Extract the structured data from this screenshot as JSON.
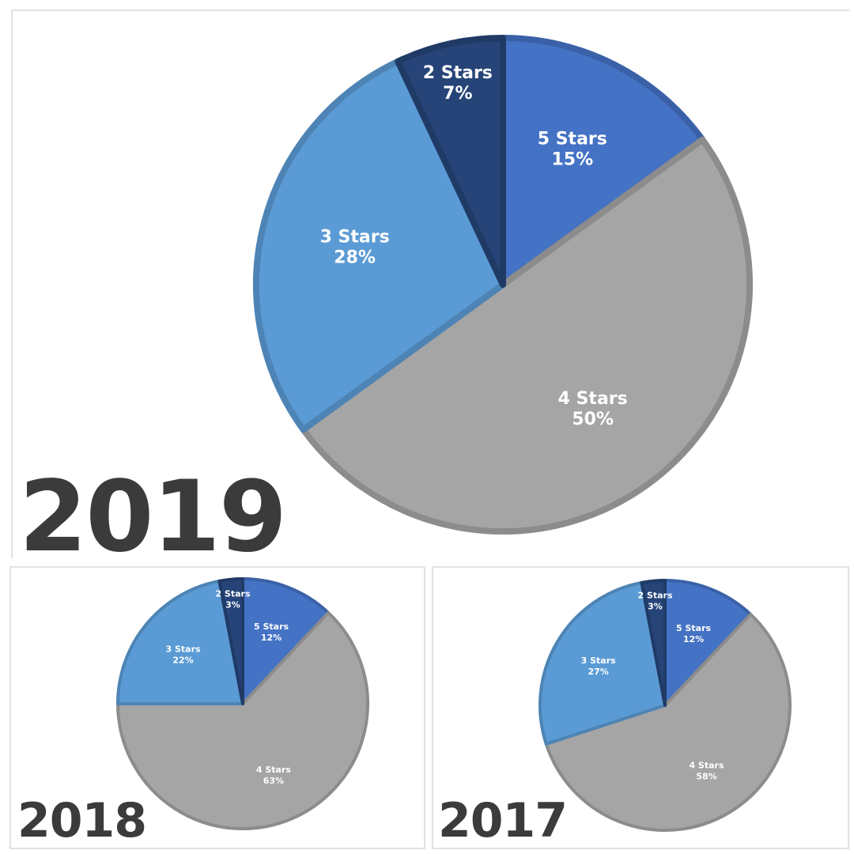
{
  "colors": {
    "5 Stars": "#4472c4",
    "4 Stars": "#a5a5a5",
    "3 Stars": "#5b9bd5",
    "2 Stars": "#264478"
  },
  "chart_data": [
    {
      "type": "pie",
      "year_label": "2019",
      "title": "",
      "categories": [
        "5 Stars",
        "4 Stars",
        "3 Stars",
        "2 Stars"
      ],
      "values": [
        15,
        50,
        28,
        7
      ],
      "value_labels": [
        "15%",
        "50%",
        "28%",
        "7%"
      ]
    },
    {
      "type": "pie",
      "year_label": "2018",
      "title": "",
      "categories": [
        "5 Stars",
        "4 Stars",
        "3 Stars",
        "2 Stars"
      ],
      "values": [
        12,
        63,
        22,
        3
      ],
      "value_labels": [
        "12%",
        "63%",
        "22%",
        "3%"
      ]
    },
    {
      "type": "pie",
      "year_label": "2017",
      "title": "",
      "categories": [
        "5 Stars",
        "4 Stars",
        "3 Stars",
        "2 Stars"
      ],
      "values": [
        12,
        58,
        27,
        3
      ],
      "value_labels": [
        "12%",
        "58%",
        "27%",
        "3%"
      ]
    }
  ]
}
